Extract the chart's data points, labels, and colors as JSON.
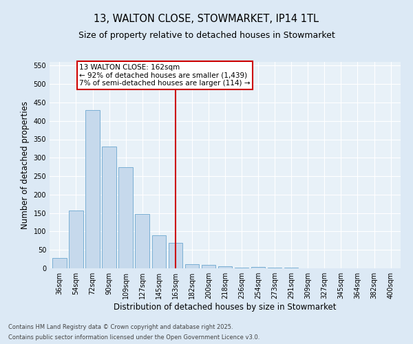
{
  "title_line1": "13, WALTON CLOSE, STOWMARKET, IP14 1TL",
  "title_line2": "Size of property relative to detached houses in Stowmarket",
  "xlabel": "Distribution of detached houses by size in Stowmarket",
  "ylabel": "Number of detached properties",
  "categories": [
    "36sqm",
    "54sqm",
    "72sqm",
    "90sqm",
    "109sqm",
    "127sqm",
    "145sqm",
    "163sqm",
    "182sqm",
    "200sqm",
    "218sqm",
    "236sqm",
    "254sqm",
    "273sqm",
    "291sqm",
    "309sqm",
    "327sqm",
    "345sqm",
    "364sqm",
    "382sqm",
    "400sqm"
  ],
  "values": [
    28,
    157,
    430,
    330,
    275,
    147,
    90,
    70,
    12,
    9,
    5,
    2,
    3,
    2,
    1,
    0,
    0,
    0,
    0,
    0,
    0
  ],
  "bar_color": "#c6d9ec",
  "bar_edge_color": "#7aafd4",
  "vline_x_index": 7,
  "vline_color": "#cc0000",
  "annotation_text": "13 WALTON CLOSE: 162sqm\n← 92% of detached houses are smaller (1,439)\n7% of semi-detached houses are larger (114) →",
  "annotation_box_color": "#cc0000",
  "ylim": [
    0,
    560
  ],
  "yticks": [
    0,
    50,
    100,
    150,
    200,
    250,
    300,
    350,
    400,
    450,
    500,
    550
  ],
  "footnote_line1": "Contains HM Land Registry data © Crown copyright and database right 2025.",
  "footnote_line2": "Contains public sector information licensed under the Open Government Licence v3.0.",
  "background_color": "#dce9f5",
  "plot_bg_color": "#e8f1f8",
  "title_fontsize": 10.5,
  "subtitle_fontsize": 9,
  "tick_fontsize": 7,
  "label_fontsize": 8.5,
  "footnote_fontsize": 6,
  "annotation_fontsize": 7.5
}
